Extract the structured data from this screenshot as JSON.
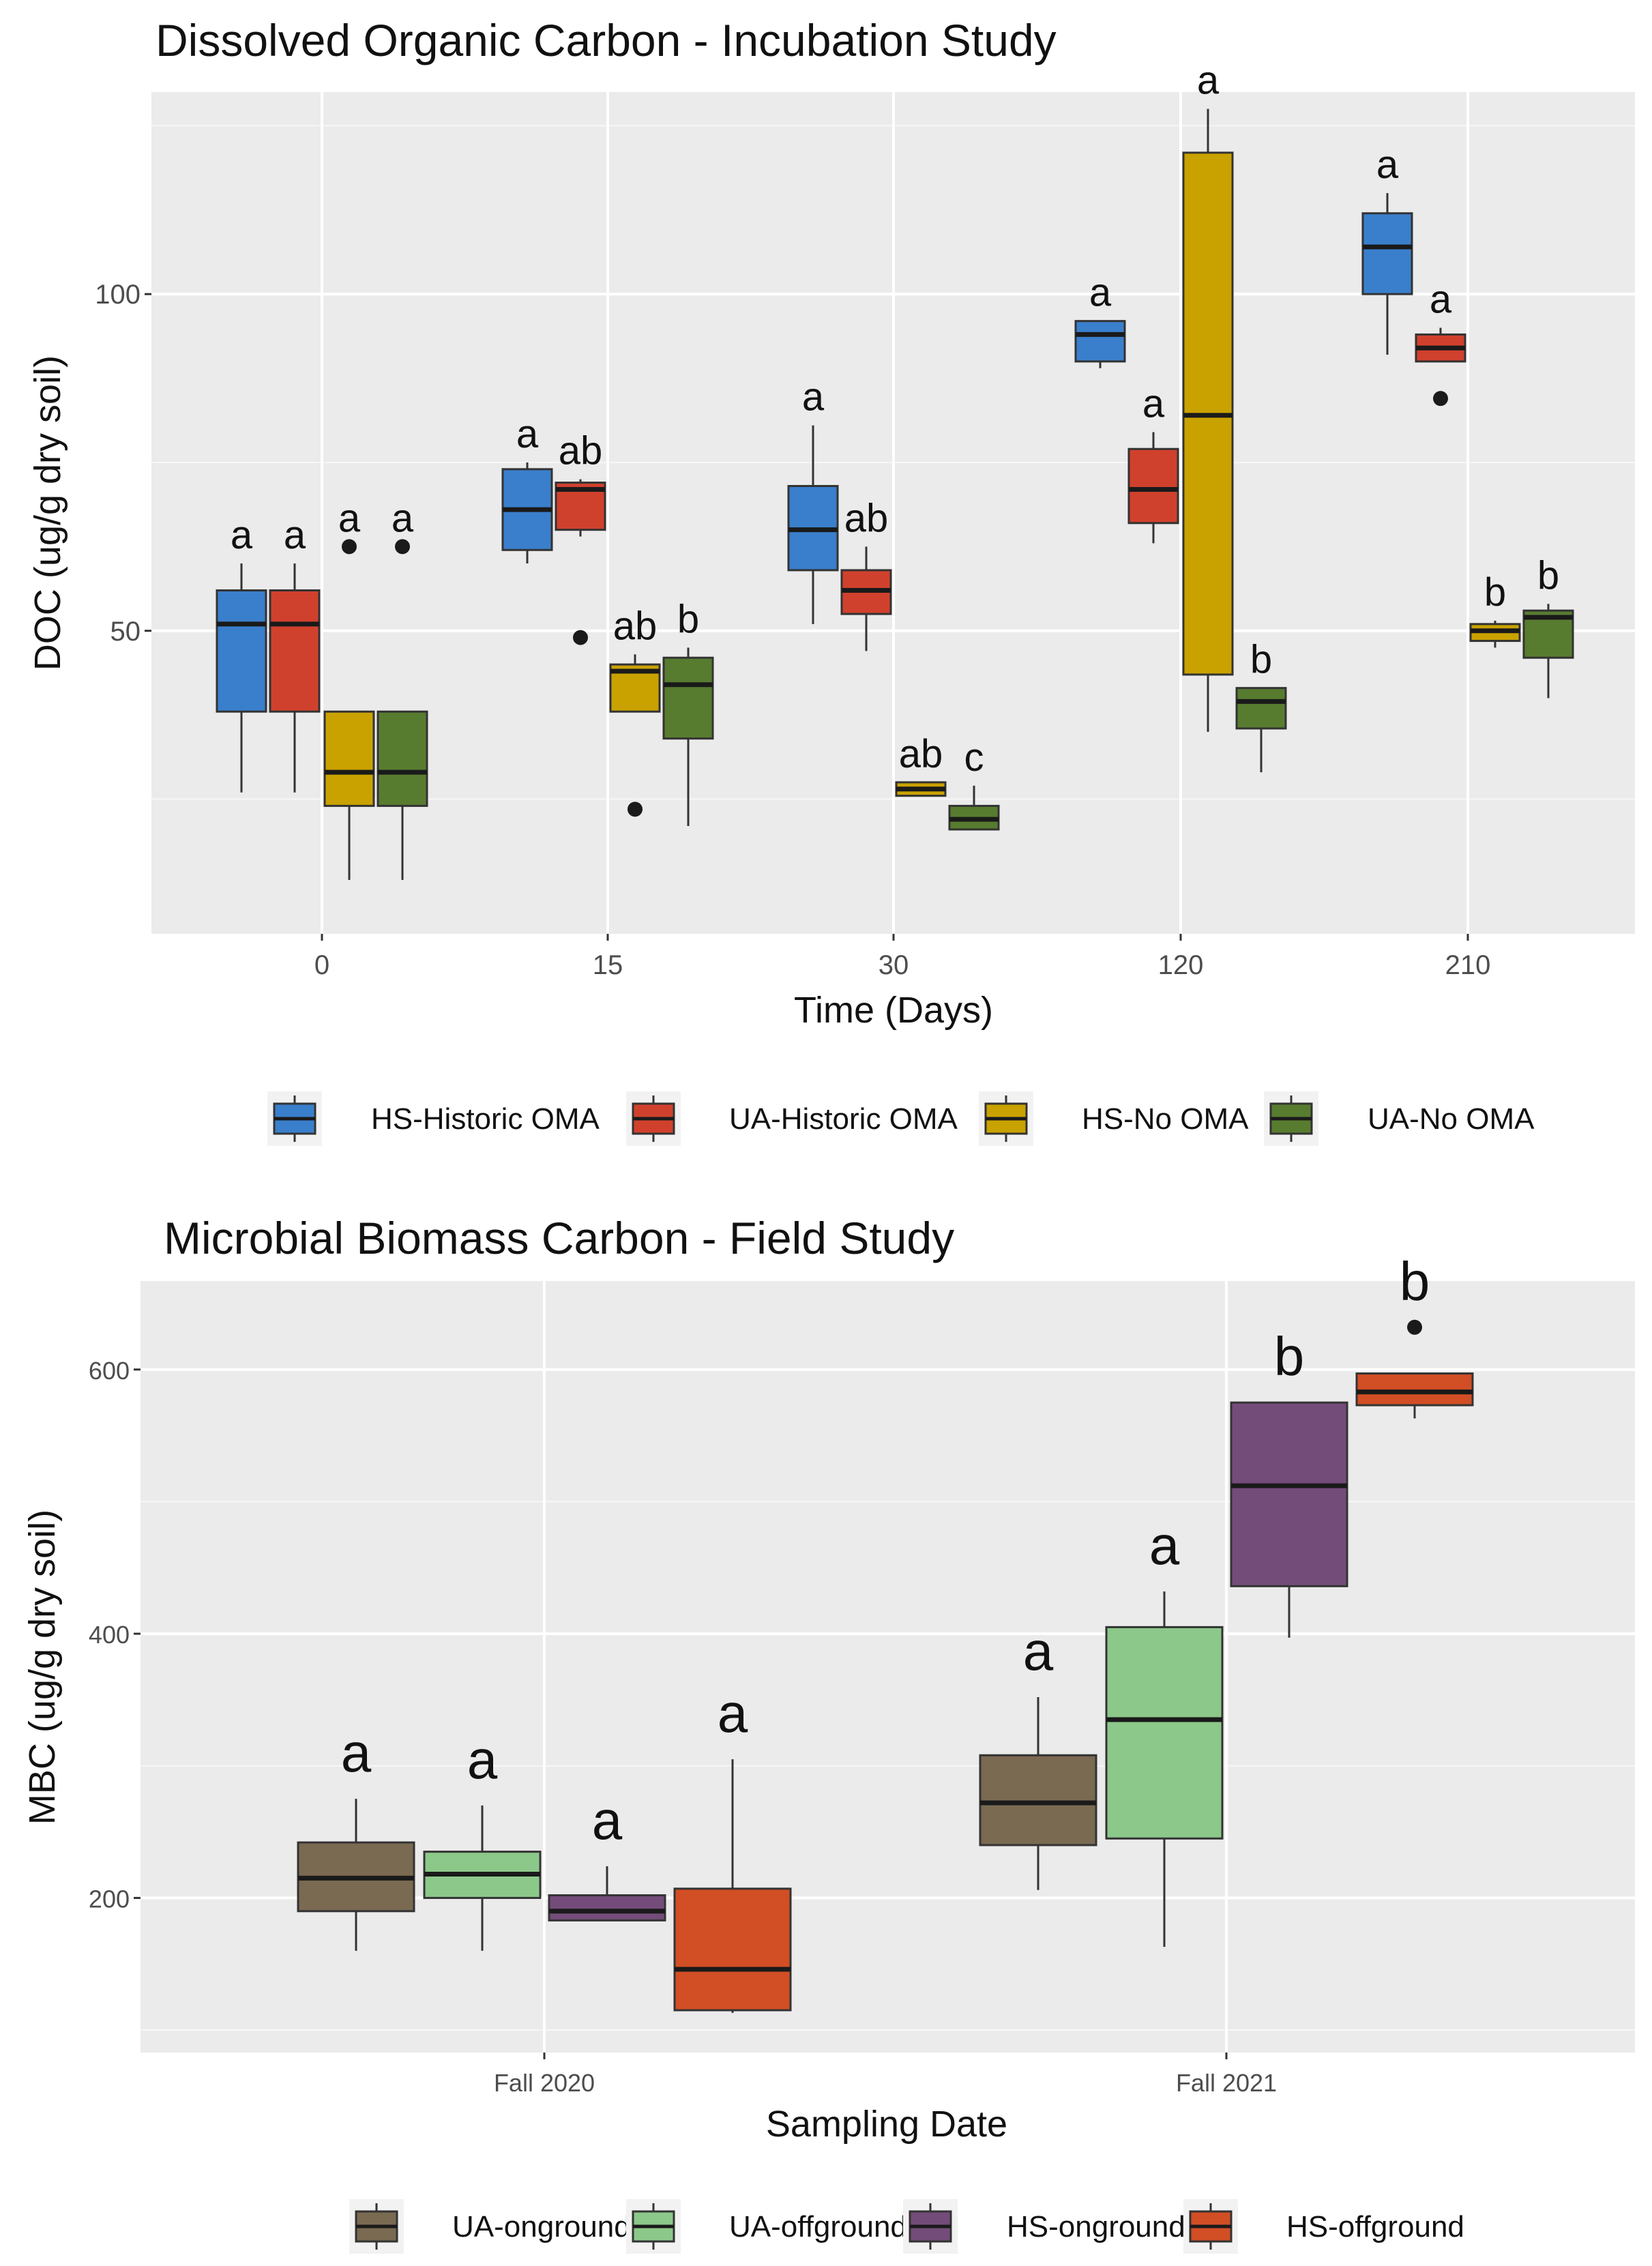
{
  "chart_data": [
    {
      "id": "doc",
      "type": "boxplot",
      "title": "Dissolved Organic Carbon - Incubation Study",
      "xlabel": "Time (Days)",
      "ylabel": "DOC (ug/g dry soil)",
      "ylim": [
        5,
        130
      ],
      "yticks": [
        50,
        100
      ],
      "categories": [
        "0",
        "15",
        "30",
        "120",
        "210"
      ],
      "series": [
        {
          "name": "HS-Historic OMA",
          "color": "#3A7FCC"
        },
        {
          "name": "UA-Historic OMA",
          "color": "#D0412D"
        },
        {
          "name": "HS-No OMA",
          "color": "#C9A200"
        },
        {
          "name": "UA-No OMA",
          "color": "#587C2F"
        }
      ],
      "boxes": [
        {
          "cat": 0,
          "series": 0,
          "min": 26,
          "q1": 38,
          "median": 51,
          "q3": 56,
          "max": 60,
          "outliers": [],
          "letter": "a"
        },
        {
          "cat": 0,
          "series": 1,
          "min": 26,
          "q1": 38,
          "median": 51,
          "q3": 56,
          "max": 60,
          "outliers": [],
          "letter": "a"
        },
        {
          "cat": 0,
          "series": 2,
          "min": 13,
          "q1": 24,
          "median": 29,
          "q3": 38,
          "max": 38,
          "outliers": [
            62.5
          ],
          "letter": "a"
        },
        {
          "cat": 0,
          "series": 3,
          "min": 13,
          "q1": 24,
          "median": 29,
          "q3": 38,
          "max": 38,
          "outliers": [
            62.5
          ],
          "letter": "a"
        },
        {
          "cat": 1,
          "series": 0,
          "min": 60,
          "q1": 62,
          "median": 68,
          "q3": 74,
          "max": 75,
          "outliers": [],
          "letter": "a"
        },
        {
          "cat": 1,
          "series": 1,
          "min": 64,
          "q1": 65,
          "median": 71,
          "q3": 72,
          "max": 72.5,
          "outliers": [
            49
          ],
          "letter": "ab"
        },
        {
          "cat": 1,
          "series": 2,
          "min": 38,
          "q1": 38,
          "median": 44,
          "q3": 45,
          "max": 46.5,
          "outliers": [
            23.5
          ],
          "letter": "ab"
        },
        {
          "cat": 1,
          "series": 3,
          "min": 21,
          "q1": 34,
          "median": 42,
          "q3": 46,
          "max": 47.5,
          "outliers": [],
          "letter": "b"
        },
        {
          "cat": 2,
          "series": 0,
          "min": 51,
          "q1": 59,
          "median": 65,
          "q3": 71.5,
          "max": 80.5,
          "outliers": [],
          "letter": "a"
        },
        {
          "cat": 2,
          "series": 1,
          "min": 47,
          "q1": 52.5,
          "median": 56,
          "q3": 59,
          "max": 62.5,
          "outliers": [],
          "letter": "ab"
        },
        {
          "cat": 2,
          "series": 2,
          "min": 25.5,
          "q1": 25.5,
          "median": 26.5,
          "q3": 27.5,
          "max": 27.5,
          "outliers": [],
          "letter": "ab"
        },
        {
          "cat": 2,
          "series": 3,
          "min": 20.5,
          "q1": 20.5,
          "median": 22,
          "q3": 24,
          "max": 27,
          "outliers": [],
          "letter": "c"
        },
        {
          "cat": 3,
          "series": 0,
          "min": 89,
          "q1": 90,
          "median": 94,
          "q3": 96,
          "max": 96,
          "outliers": [],
          "letter": "a"
        },
        {
          "cat": 3,
          "series": 1,
          "min": 63,
          "q1": 66,
          "median": 71,
          "q3": 77,
          "max": 79.5,
          "outliers": [],
          "letter": "a"
        },
        {
          "cat": 3,
          "series": 2,
          "min": 35,
          "q1": 43.5,
          "median": 82,
          "q3": 121,
          "max": 127.5,
          "outliers": [],
          "letter": "a"
        },
        {
          "cat": 3,
          "series": 3,
          "min": 29,
          "q1": 35.5,
          "median": 39.5,
          "q3": 41.5,
          "max": 41.5,
          "outliers": [],
          "letter": "b"
        },
        {
          "cat": 4,
          "series": 0,
          "min": 91,
          "q1": 100,
          "median": 107,
          "q3": 112,
          "max": 115,
          "outliers": [],
          "letter": "a"
        },
        {
          "cat": 4,
          "series": 1,
          "min": 90,
          "q1": 90,
          "median": 92,
          "q3": 94,
          "max": 95,
          "outliers": [
            84.5
          ],
          "letter": "a"
        },
        {
          "cat": 4,
          "series": 2,
          "min": 47.5,
          "q1": 48.5,
          "median": 50,
          "q3": 51,
          "max": 51.5,
          "outliers": [],
          "letter": "b"
        },
        {
          "cat": 4,
          "series": 3,
          "min": 40,
          "q1": 46,
          "median": 52,
          "q3": 53,
          "max": 54,
          "outliers": [],
          "letter": "b"
        }
      ]
    },
    {
      "id": "mbc",
      "type": "boxplot",
      "title": "Microbial Biomass Carbon - Field Study",
      "xlabel": "Sampling Date",
      "ylabel": "MBC (ug/g dry soil)",
      "ylim": [
        83,
        667
      ],
      "yticks": [
        200,
        400,
        600
      ],
      "categories": [
        "Fall 2020",
        "Fall 2021"
      ],
      "series": [
        {
          "name": "UA-onground",
          "color": "#7A6A52"
        },
        {
          "name": "UA-offground",
          "color": "#8CC88A"
        },
        {
          "name": "HS-onground",
          "color": "#744C7A"
        },
        {
          "name": "HS-offground",
          "color": "#D24E25"
        }
      ],
      "boxes": [
        {
          "cat": 0,
          "series": 0,
          "min": 160,
          "q1": 190,
          "median": 215,
          "q3": 242,
          "max": 275,
          "outliers": [],
          "letter": "a"
        },
        {
          "cat": 0,
          "series": 1,
          "min": 160,
          "q1": 200,
          "median": 218,
          "q3": 235,
          "max": 270,
          "outliers": [],
          "letter": "a"
        },
        {
          "cat": 0,
          "series": 2,
          "min": 183,
          "q1": 183,
          "median": 190,
          "q3": 202,
          "max": 224,
          "outliers": [],
          "letter": "a"
        },
        {
          "cat": 0,
          "series": 3,
          "min": 113,
          "q1": 115,
          "median": 146,
          "q3": 207,
          "max": 305,
          "outliers": [],
          "letter": "a"
        },
        {
          "cat": 1,
          "series": 0,
          "min": 206,
          "q1": 240,
          "median": 272,
          "q3": 308,
          "max": 352,
          "outliers": [],
          "letter": "a"
        },
        {
          "cat": 1,
          "series": 1,
          "min": 163,
          "q1": 245,
          "median": 335,
          "q3": 405,
          "max": 432,
          "outliers": [],
          "letter": "a"
        },
        {
          "cat": 1,
          "series": 2,
          "min": 397,
          "q1": 436,
          "median": 512,
          "q3": 575,
          "max": 575,
          "outliers": [],
          "letter": "b"
        },
        {
          "cat": 1,
          "series": 3,
          "min": 563,
          "q1": 573,
          "median": 583,
          "q3": 597,
          "max": 597,
          "outliers": [
            632
          ],
          "letter": "b"
        }
      ]
    }
  ]
}
